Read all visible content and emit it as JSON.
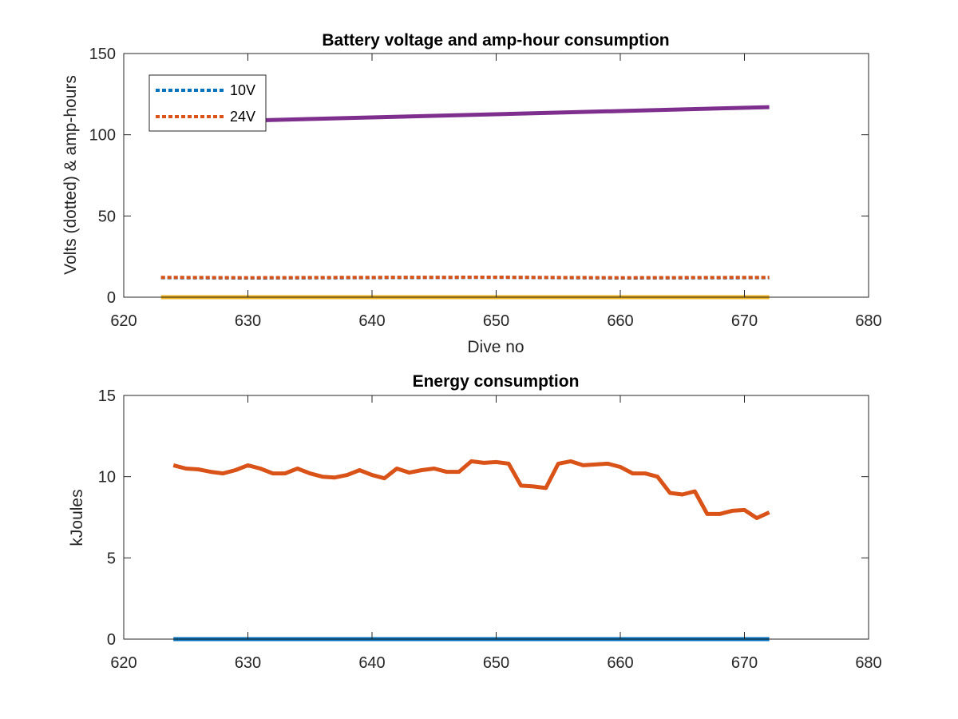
{
  "chart_data": [
    {
      "type": "line",
      "title": "Battery voltage and amp-hour consumption",
      "xlabel": "Dive no",
      "ylabel": "Volts (dotted) & amp-hours",
      "xlim": [
        620,
        680
      ],
      "ylim": [
        0,
        150
      ],
      "xticks": [
        620,
        630,
        640,
        650,
        660,
        670,
        680
      ],
      "yticks": [
        0,
        50,
        100,
        150
      ],
      "grid": false,
      "legend": {
        "placement": "top-left"
      },
      "series": [
        {
          "name": "10V",
          "style": "dotted",
          "color": "#0072BD",
          "x": [
            623,
            630,
            640,
            650,
            660,
            672
          ],
          "y": [
            12,
            11.8,
            12,
            12.2,
            11.8,
            12
          ]
        },
        {
          "name": "24V",
          "style": "dotted",
          "color": "#D95319",
          "x": [
            623,
            630,
            640,
            650,
            660,
            672
          ],
          "y": [
            12.2,
            12,
            12.2,
            12.3,
            12,
            12.2
          ]
        },
        {
          "style": "solid",
          "color": "#7E2F8E",
          "x": [
            629,
            672
          ],
          "y": [
            108.5,
            117
          ]
        },
        {
          "style": "solid",
          "color": "#EDB120",
          "x": [
            623,
            672
          ],
          "y": [
            0,
            0
          ]
        }
      ]
    },
    {
      "type": "line",
      "title": "Energy consumption",
      "xlabel": "",
      "ylabel": "kJoules",
      "xlim": [
        620,
        680
      ],
      "ylim": [
        0,
        15
      ],
      "xticks": [
        620,
        630,
        640,
        650,
        660,
        670,
        680
      ],
      "yticks": [
        0,
        5,
        10,
        15
      ],
      "grid": false,
      "series": [
        {
          "style": "solid",
          "color": "#0072BD",
          "x": [
            624,
            672
          ],
          "y": [
            0,
            0
          ]
        },
        {
          "style": "solid",
          "color": "#D95319",
          "x": [
            624,
            625,
            626,
            627,
            628,
            629,
            630,
            631,
            632,
            633,
            634,
            635,
            636,
            637,
            638,
            639,
            640,
            641,
            642,
            643,
            644,
            645,
            646,
            647,
            648,
            649,
            650,
            651,
            652,
            653,
            654,
            655,
            656,
            657,
            658,
            659,
            660,
            661,
            662,
            663,
            664,
            665,
            666,
            667,
            668,
            669,
            670,
            671,
            672
          ],
          "y": [
            10.7,
            10.5,
            10.45,
            10.3,
            10.2,
            10.4,
            10.7,
            10.5,
            10.2,
            10.2,
            10.5,
            10.2,
            10.0,
            9.95,
            10.1,
            10.4,
            10.1,
            9.9,
            10.5,
            10.25,
            10.4,
            10.5,
            10.3,
            10.3,
            10.95,
            10.85,
            10.9,
            10.8,
            9.45,
            9.4,
            9.3,
            10.8,
            10.95,
            10.7,
            10.75,
            10.8,
            10.6,
            10.2,
            10.2,
            10.0,
            9.0,
            8.9,
            9.1,
            7.7,
            7.7,
            7.9,
            7.95,
            7.45,
            7.8
          ]
        }
      ]
    }
  ]
}
